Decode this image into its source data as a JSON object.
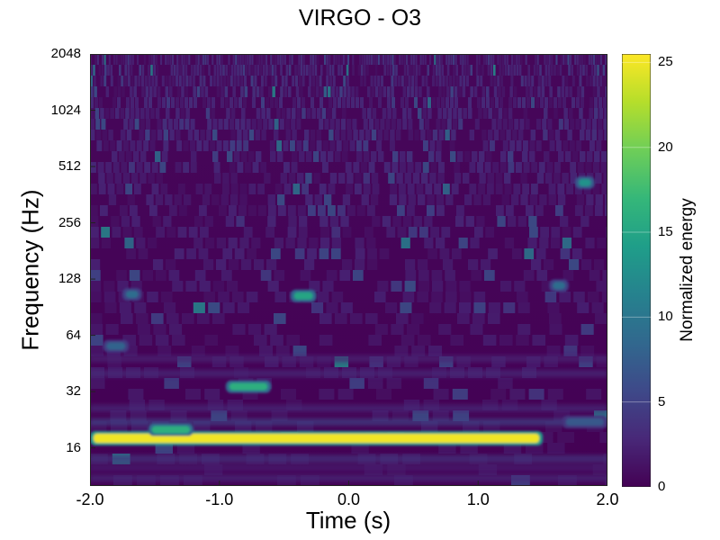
{
  "chart_data": {
    "type": "heatmap",
    "title": "VIRGO - O3",
    "xlabel": "Time (s)",
    "ylabel": "Frequency (Hz)",
    "xlim": [
      -2.0,
      2.0
    ],
    "ylim": [
      10,
      2048
    ],
    "yscale": "log2",
    "x_ticks": [
      -2.0,
      -1.0,
      0.0,
      1.0,
      2.0
    ],
    "x_tick_labels": [
      "-2.0",
      "-1.0",
      "0.0",
      "1.0",
      "2.0"
    ],
    "y_ticks": [
      16,
      32,
      64,
      128,
      256,
      512,
      1024,
      2048
    ],
    "y_tick_labels": [
      "16",
      "32",
      "64",
      "128",
      "256",
      "512",
      "1024",
      "2048"
    ],
    "colorbar": {
      "label": "Normalized energy",
      "range": [
        0,
        25.5
      ],
      "ticks": [
        0,
        5,
        10,
        15,
        20,
        25
      ],
      "tick_labels": [
        "0",
        "5",
        "10",
        "15",
        "20",
        "25"
      ],
      "colormap": "viridis"
    },
    "features": [
      {
        "t_start": -2.0,
        "t_end": 1.5,
        "freq": 18,
        "energy": 25
      },
      {
        "t_start": -0.95,
        "t_end": -0.6,
        "freq": 34,
        "energy": 16
      },
      {
        "t_start": -1.55,
        "t_end": -1.2,
        "freq": 20,
        "energy": 16
      },
      {
        "t_start": -0.45,
        "t_end": -0.25,
        "freq": 104,
        "energy": 15
      },
      {
        "t_start": -1.75,
        "t_end": -1.6,
        "freq": 106,
        "energy": 9
      },
      {
        "t_start": 1.55,
        "t_end": 1.7,
        "freq": 118,
        "energy": 9
      },
      {
        "t_start": 1.75,
        "t_end": 1.9,
        "freq": 420,
        "energy": 13
      },
      {
        "t_start": -1.9,
        "t_end": -1.7,
        "freq": 56,
        "energy": 8
      },
      {
        "t_start": 1.65,
        "t_end": 2.0,
        "freq": 22,
        "energy": 7
      }
    ],
    "grid": false
  },
  "colors": {
    "viridis": [
      "#440154",
      "#482878",
      "#3e4989",
      "#31688e",
      "#26828e",
      "#1f9e89",
      "#35b779",
      "#6ece58",
      "#b5de2b",
      "#fde725"
    ]
  }
}
